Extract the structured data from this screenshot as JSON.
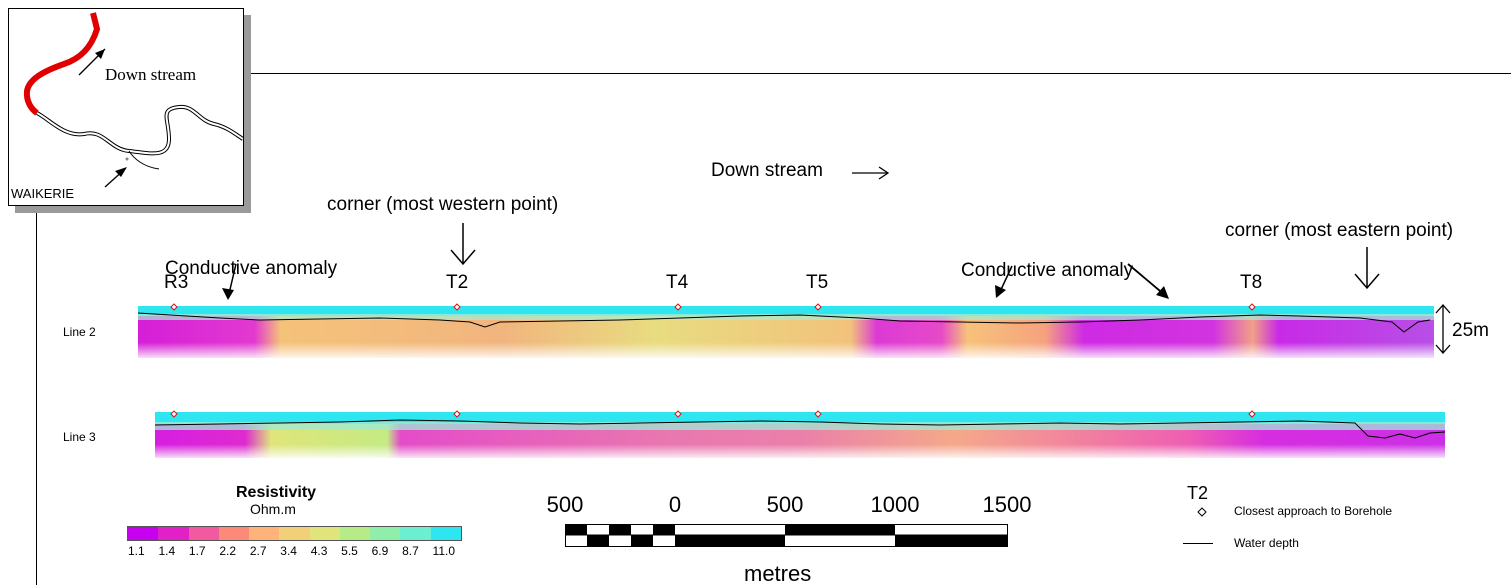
{
  "inset_map": {
    "arrow_label": "Down stream",
    "town_label": "WAIKERIE"
  },
  "annotations": {
    "downstream": "Down stream",
    "corner_west": "corner (most western point)",
    "corner_east": "corner (most eastern point)",
    "anomaly_1": "Conductive anomaly",
    "anomaly_2": "Conductive anomaly"
  },
  "boreholes": [
    "R3",
    "T2",
    "T4",
    "T5",
    "T8"
  ],
  "lines": {
    "line2": "Line 2",
    "line3": "Line 3",
    "depth_scale": "25m"
  },
  "colorbar": {
    "title": "Resistivity",
    "unit": "Ohm.m",
    "ticks": [
      "1.1",
      "1.4",
      "1.7",
      "2.2",
      "2.7",
      "3.4",
      "4.3",
      "5.5",
      "6.9",
      "8.7",
      "11.0"
    ],
    "colors": [
      "#c800f0",
      "#e220c8",
      "#f25aa0",
      "#fb8a78",
      "#ffb37a",
      "#f2d07a",
      "#dfe57a",
      "#b5ec88",
      "#8fefa8",
      "#6cefd0",
      "#2ee6f0"
    ]
  },
  "scale_bar": {
    "ticks": [
      "500",
      "0",
      "500",
      "1000",
      "1500"
    ],
    "unit": "metres"
  },
  "legend": {
    "marker_label": "T2",
    "borehole_text": "Closest approach to Borehole",
    "water_text": "Water depth"
  }
}
